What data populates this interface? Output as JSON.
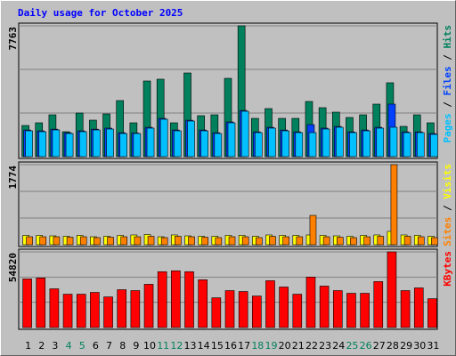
{
  "chart_data": [
    {
      "type": "bar",
      "title": "Daily usage for October 2025",
      "title_color": "#0000ff",
      "legend_separator": " / ",
      "ylim": [
        0,
        7763
      ],
      "yticks": [
        7763
      ],
      "grid": true,
      "series": [
        {
          "name": "Pages",
          "color": "#00c0ff",
          "values": [
            1531,
            1479,
            1584,
            1373,
            1479,
            1584,
            1637,
            1373,
            1373,
            1690,
            2218,
            1531,
            2112,
            1531,
            1373,
            2007,
            2693,
            1426,
            1690,
            1531,
            1426,
            1426,
            1637,
            1743,
            1426,
            1531,
            1690,
            1743,
            1426,
            1426,
            1320
          ]
        },
        {
          "name": "Files",
          "color": "#0040ff",
          "values": [
            1580,
            1530,
            1630,
            1420,
            1530,
            1630,
            1690,
            1420,
            1400,
            1740,
            2270,
            1580,
            2160,
            1580,
            1420,
            2060,
            2740,
            1470,
            1740,
            1580,
            1470,
            1901,
            1690,
            1790,
            1470,
            1580,
            1740,
            3116,
            1470,
            1470,
            1370
          ]
        },
        {
          "name": "Hits",
          "color": "#00805c",
          "values": [
            1848,
            2007,
            2482,
            1479,
            2588,
            2165,
            2535,
            3327,
            2007,
            4489,
            4595,
            2007,
            4964,
            2429,
            2482,
            4647,
            7763,
            2271,
            2852,
            2271,
            2271,
            3274,
            2905,
            2640,
            2324,
            2482,
            3116,
            4383,
            1796,
            2482,
            2007
          ]
        }
      ]
    },
    {
      "type": "bar",
      "legend_separator": " / ",
      "ylim": [
        0,
        1774
      ],
      "yticks": [
        1774
      ],
      "grid": true,
      "series": [
        {
          "name": "Sites",
          "color": "#ff8000",
          "values": [
            177,
            177,
            177,
            167,
            177,
            158,
            167,
            177,
            177,
            187,
            158,
            187,
            177,
            167,
            158,
            177,
            177,
            158,
            187,
            177,
            177,
            650,
            177,
            167,
            158,
            177,
            187,
            1774,
            187,
            177,
            158
          ]
        },
        {
          "name": "Visits",
          "color": "#ffff00",
          "values": [
            207,
            207,
            197,
            187,
            207,
            177,
            187,
            207,
            217,
            227,
            177,
            217,
            197,
            187,
            187,
            207,
            207,
            187,
            217,
            207,
            207,
            217,
            207,
            197,
            187,
            207,
            217,
            296,
            217,
            207,
            187
          ]
        }
      ]
    },
    {
      "type": "bar",
      "ylim": [
        0,
        54820
      ],
      "yticks": [
        54820
      ],
      "grid": true,
      "categories": [
        "1",
        "2",
        "3",
        "4",
        "5",
        "6",
        "7",
        "8",
        "9",
        "10",
        "11",
        "12",
        "13",
        "14",
        "15",
        "16",
        "17",
        "18",
        "19",
        "20",
        "21",
        "22",
        "23",
        "24",
        "25",
        "26",
        "27",
        "28",
        "29",
        "30",
        "31"
      ],
      "category_colors": [
        "#000000",
        "#000000",
        "#000000",
        "#00805c",
        "#00805c",
        "#000000",
        "#000000",
        "#000000",
        "#000000",
        "#000000",
        "#00805c",
        "#00805c",
        "#000000",
        "#000000",
        "#000000",
        "#000000",
        "#000000",
        "#00805c",
        "#00805c",
        "#000000",
        "#000000",
        "#000000",
        "#000000",
        "#000000",
        "#00805c",
        "#00805c",
        "#000000",
        "#000000",
        "#000000",
        "#000000",
        "#000000"
      ],
      "series": [
        {
          "name": "KBytes",
          "color": "#ff0000",
          "values": [
            35240,
            35893,
            28063,
            24147,
            24147,
            25452,
            22189,
            27410,
            26758,
            31325,
            40462,
            41114,
            40462,
            34588,
            21536,
            26758,
            26105,
            22842,
            33935,
            29368,
            24147,
            36546,
            30020,
            26758,
            24800,
            24800,
            33283,
            54820,
            26758,
            28716,
            20884
          ]
        }
      ]
    }
  ]
}
